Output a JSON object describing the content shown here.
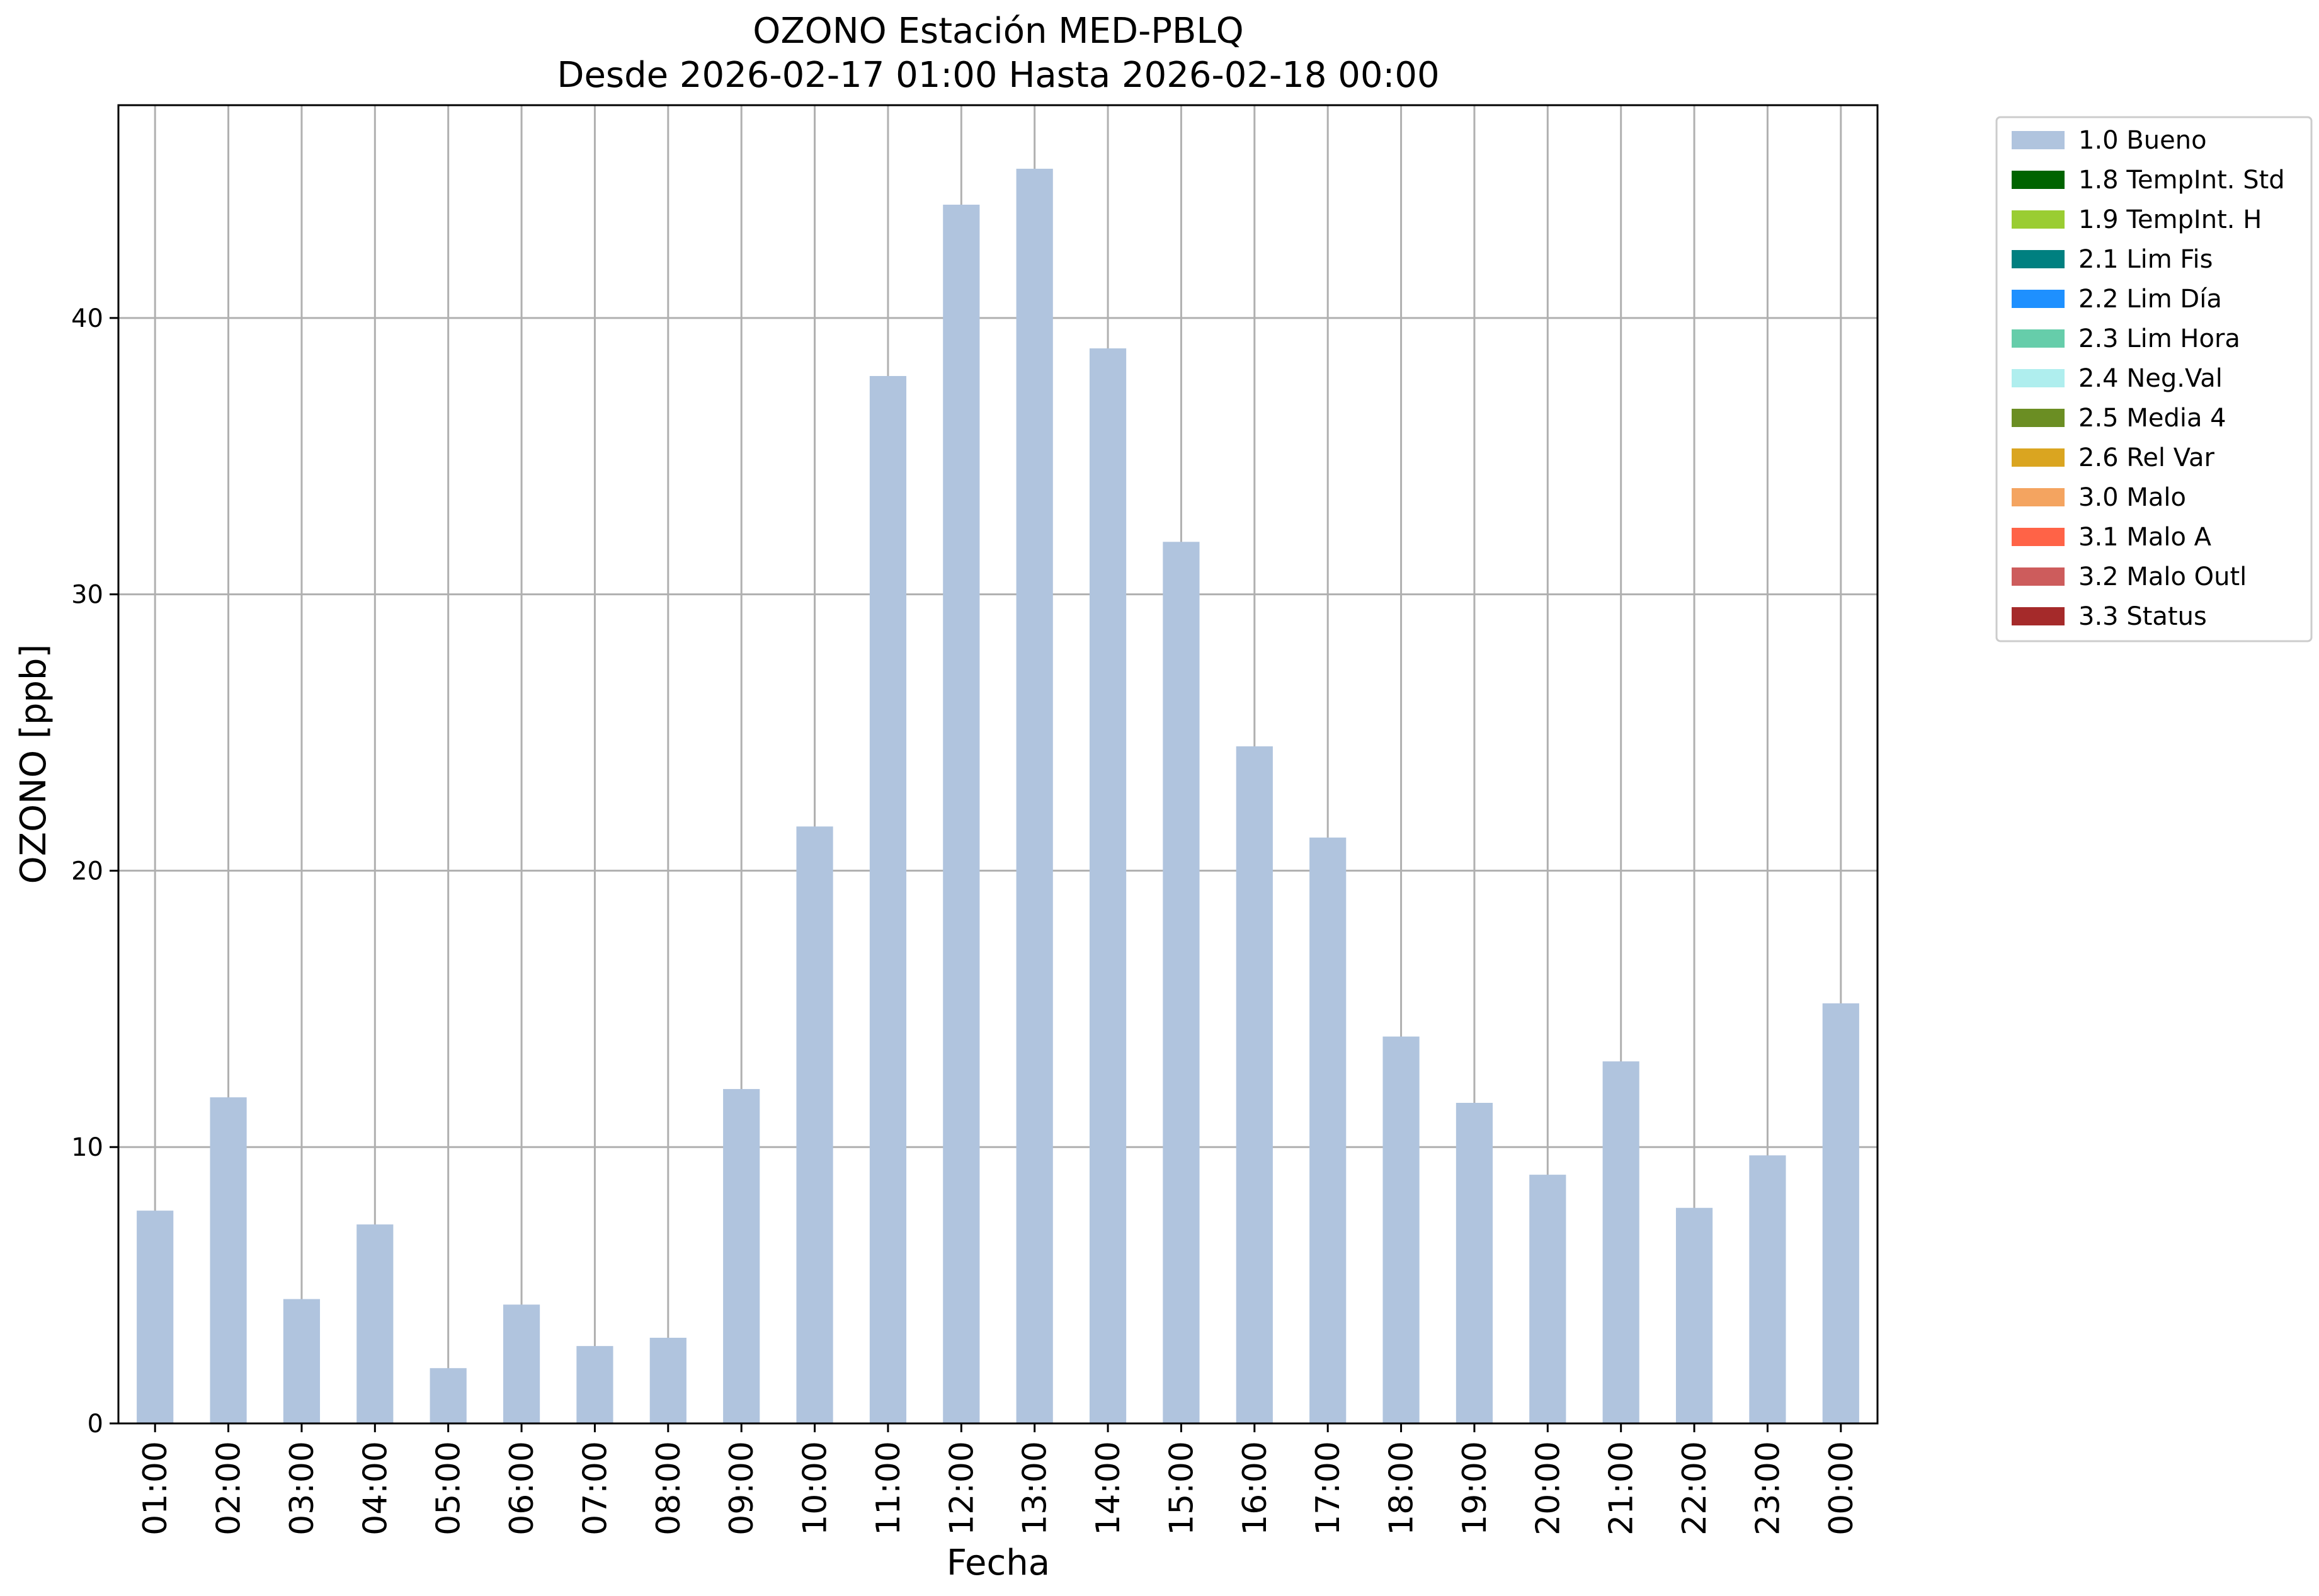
{
  "chart_data": {
    "type": "bar",
    "title": "OZONO Estación MED-PBLQ",
    "subtitle": "Desde 2026-02-17 01:00 Hasta 2026-02-18 00:00",
    "xlabel": "Fecha",
    "ylabel": "OZONO [ppb]",
    "ylim": [
      0,
      47.7
    ],
    "yticks": [
      0,
      10,
      20,
      30,
      40
    ],
    "grid": true,
    "legend_position": "outside-top-right",
    "categories": [
      "01:00",
      "02:00",
      "03:00",
      "04:00",
      "05:00",
      "06:00",
      "07:00",
      "08:00",
      "09:00",
      "10:00",
      "11:00",
      "12:00",
      "13:00",
      "14:00",
      "15:00",
      "16:00",
      "17:00",
      "18:00",
      "19:00",
      "20:00",
      "21:00",
      "22:00",
      "23:00",
      "00:00"
    ],
    "series": [
      {
        "name": "1.0 Bueno",
        "color": "#b0c4de",
        "values": [
          7.7,
          11.8,
          4.5,
          7.2,
          2.0,
          4.3,
          2.8,
          3.1,
          12.1,
          21.6,
          37.9,
          44.1,
          45.4,
          38.9,
          31.9,
          24.5,
          21.2,
          14.0,
          11.6,
          9.0,
          13.1,
          7.8,
          9.7,
          15.2
        ]
      }
    ],
    "legend": [
      {
        "label": "1.0 Bueno",
        "color": "#b0c4de"
      },
      {
        "label": "1.8 TempInt. Std",
        "color": "#006400"
      },
      {
        "label": "1.9 TempInt. H",
        "color": "#9acd32"
      },
      {
        "label": "2.1 Lim Fis",
        "color": "#008080"
      },
      {
        "label": "2.2 Lim Día",
        "color": "#1e90ff"
      },
      {
        "label": "2.3 Lim Hora",
        "color": "#66cdaa"
      },
      {
        "label": "2.4 Neg.Val",
        "color": "#afeeee"
      },
      {
        "label": "2.5 Media 4",
        "color": "#6b8e23"
      },
      {
        "label": "2.6 Rel Var",
        "color": "#daa520"
      },
      {
        "label": "3.0 Malo",
        "color": "#f4a460"
      },
      {
        "label": "3.1 Malo A",
        "color": "#ff6347"
      },
      {
        "label": "3.2 Malo Outl",
        "color": "#cd5c5c"
      },
      {
        "label": "3.3 Status",
        "color": "#a52a2a"
      }
    ]
  }
}
